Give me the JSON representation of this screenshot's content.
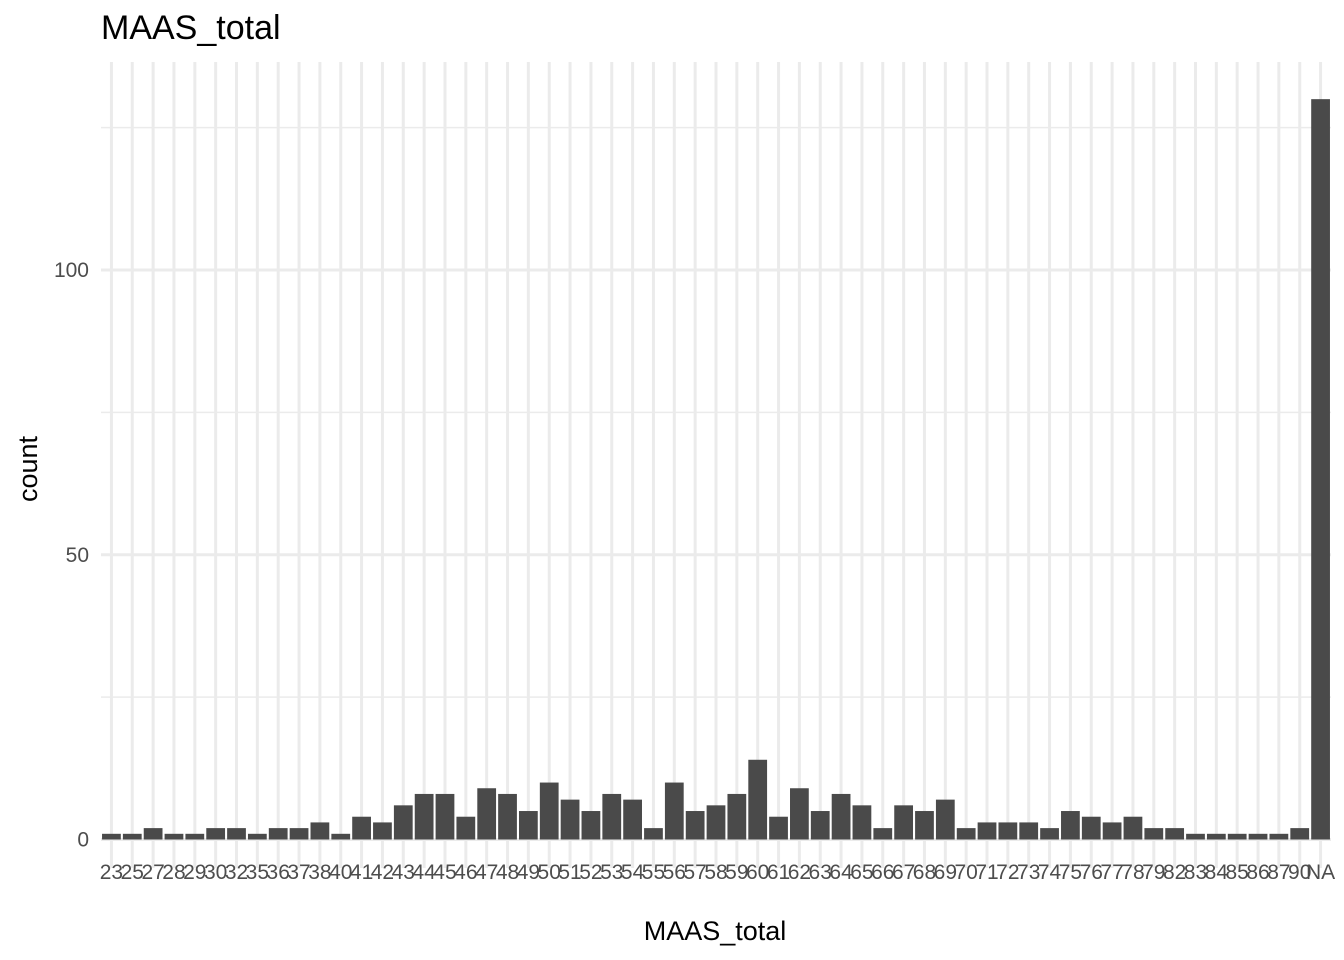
{
  "chart_data": {
    "type": "bar",
    "title": "MAAS_total",
    "xlabel": "MAAS_total",
    "ylabel": "count",
    "categories": [
      "23",
      "25",
      "27",
      "28",
      "29",
      "30",
      "32",
      "35",
      "36",
      "37",
      "38",
      "40",
      "41",
      "42",
      "43",
      "44",
      "45",
      "46",
      "47",
      "48",
      "49",
      "50",
      "51",
      "52",
      "53",
      "54",
      "55",
      "56",
      "57",
      "58",
      "59",
      "60",
      "61",
      "62",
      "63",
      "64",
      "65",
      "66",
      "67",
      "68",
      "69",
      "70",
      "71",
      "72",
      "73",
      "74",
      "75",
      "76",
      "77",
      "78",
      "79",
      "82",
      "83",
      "84",
      "85",
      "86",
      "87",
      "90",
      "NA"
    ],
    "values": [
      1,
      1,
      2,
      1,
      1,
      2,
      2,
      1,
      2,
      2,
      3,
      1,
      4,
      3,
      6,
      8,
      8,
      4,
      9,
      8,
      5,
      10,
      7,
      5,
      8,
      7,
      2,
      10,
      5,
      6,
      8,
      14,
      4,
      9,
      5,
      8,
      6,
      2,
      6,
      5,
      7,
      2,
      3,
      3,
      3,
      2,
      5,
      4,
      3,
      4,
      2,
      2,
      1,
      1,
      1,
      1,
      1,
      2,
      130
    ],
    "ylim": [
      0,
      136.5
    ],
    "y_ticks": [
      "0",
      "50",
      "100"
    ],
    "grid": true,
    "legend": "none",
    "bar_color": "#4a4a4a",
    "grid_color": "#ebebeb"
  }
}
